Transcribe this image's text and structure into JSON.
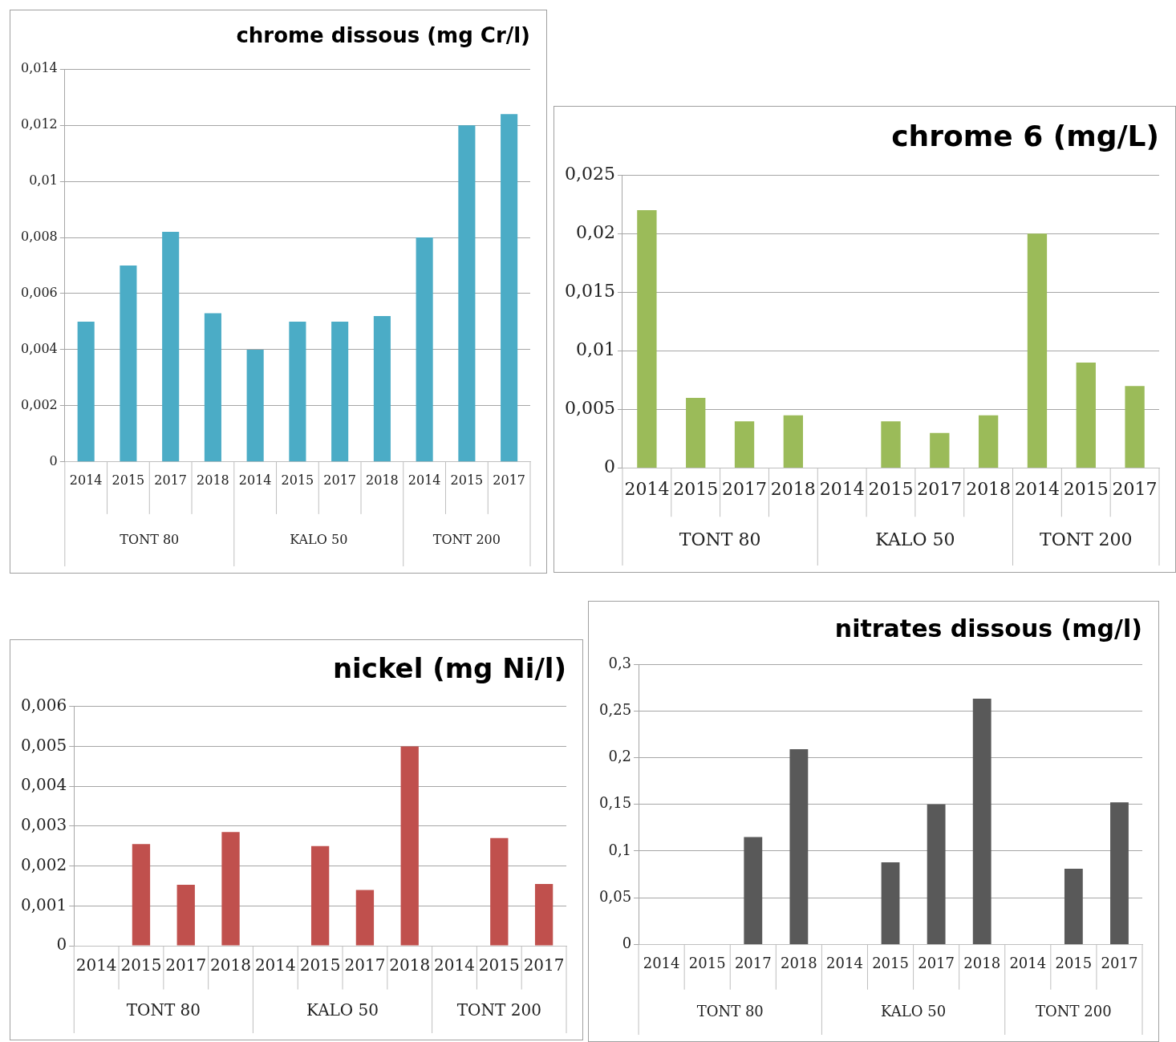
{
  "chart_data": [
    {
      "type": "bar",
      "title": "chrome dissous (mg Cr/l)",
      "categories": [
        "2014",
        "2015",
        "2017",
        "2018",
        "2014",
        "2015",
        "2017",
        "2018",
        "2014",
        "2015",
        "2017"
      ],
      "values": [
        0.005,
        0.007,
        0.0082,
        0.0053,
        0.004,
        0.005,
        0.005,
        0.0052,
        0.008,
        0.012,
        0.0124
      ],
      "color": "#4bacc6",
      "ylim": [
        0,
        0.014
      ],
      "yticks": [
        {
          "value": 0,
          "label": "0"
        },
        {
          "value": 0.002,
          "label": "0,002"
        },
        {
          "value": 0.004,
          "label": "0,004"
        },
        {
          "value": 0.006,
          "label": "0,006"
        },
        {
          "value": 0.008,
          "label": "0,008"
        },
        {
          "value": 0.01,
          "label": "0,01"
        },
        {
          "value": 0.012,
          "label": "0,012"
        },
        {
          "value": 0.014,
          "label": "0,014"
        }
      ],
      "grid": "y",
      "annotations": [
        "TONT 80",
        "KALO 50",
        "TONT 200"
      ]
    },
    {
      "type": "bar",
      "title": "chrome 6 (mg/L)",
      "categories": [
        "2014",
        "2015",
        "2017",
        "2018",
        "2014",
        "2015",
        "2017",
        "2018",
        "2014",
        "2015",
        "2017"
      ],
      "values": [
        0.022,
        0.006,
        0.004,
        0.0045,
        null,
        0.004,
        0.003,
        0.0045,
        0.02,
        0.009,
        0.007
      ],
      "color": "#9bbb59",
      "ylim": [
        0,
        0.025
      ],
      "yticks": [
        {
          "value": 0,
          "label": "0"
        },
        {
          "value": 0.005,
          "label": "0,005"
        },
        {
          "value": 0.01,
          "label": "0,01"
        },
        {
          "value": 0.015,
          "label": "0,015"
        },
        {
          "value": 0.02,
          "label": "0,02"
        },
        {
          "value": 0.025,
          "label": "0,025"
        }
      ],
      "grid": "y",
      "annotations": [
        "TONT 80",
        "KALO 50",
        "TONT 200"
      ]
    },
    {
      "type": "bar",
      "title": "nickel (mg Ni/l)",
      "categories": [
        "2014",
        "2015",
        "2017",
        "2018",
        "2014",
        "2015",
        "2017",
        "2018",
        "2014",
        "2015",
        "2017"
      ],
      "values": [
        null,
        0.00255,
        0.00153,
        0.00285,
        null,
        0.0025,
        0.0014,
        0.005,
        null,
        0.0027,
        0.00155
      ],
      "color": "#c0504d",
      "ylim": [
        0,
        0.006
      ],
      "yticks": [
        {
          "value": 0,
          "label": "0"
        },
        {
          "value": 0.001,
          "label": "0,001"
        },
        {
          "value": 0.002,
          "label": "0,002"
        },
        {
          "value": 0.003,
          "label": "0,003"
        },
        {
          "value": 0.004,
          "label": "0,004"
        },
        {
          "value": 0.005,
          "label": "0,005"
        },
        {
          "value": 0.006,
          "label": "0,006"
        }
      ],
      "grid": "y",
      "annotations": [
        "TONT 80",
        "KALO 50",
        "TONT 200"
      ]
    },
    {
      "type": "bar",
      "title": "nitrates dissous (mg/l)",
      "categories": [
        "2014",
        "2015",
        "2017",
        "2018",
        "2014",
        "2015",
        "2017",
        "2018",
        "2014",
        "2015",
        "2017"
      ],
      "values": [
        null,
        null,
        0.115,
        0.209,
        null,
        0.088,
        0.15,
        0.263,
        null,
        0.081,
        0.152
      ],
      "color": "#595959",
      "ylim": [
        0,
        0.3
      ],
      "yticks": [
        {
          "value": 0,
          "label": "0"
        },
        {
          "value": 0.05,
          "label": "0,05"
        },
        {
          "value": 0.1,
          "label": "0,1"
        },
        {
          "value": 0.15,
          "label": "0,15"
        },
        {
          "value": 0.2,
          "label": "0,2"
        },
        {
          "value": 0.25,
          "label": "0,25"
        },
        {
          "value": 0.3,
          "label": "0,3"
        }
      ],
      "grid": "y",
      "annotations": [
        "TONT 80",
        "KALO 50",
        "TONT 200"
      ]
    }
  ]
}
